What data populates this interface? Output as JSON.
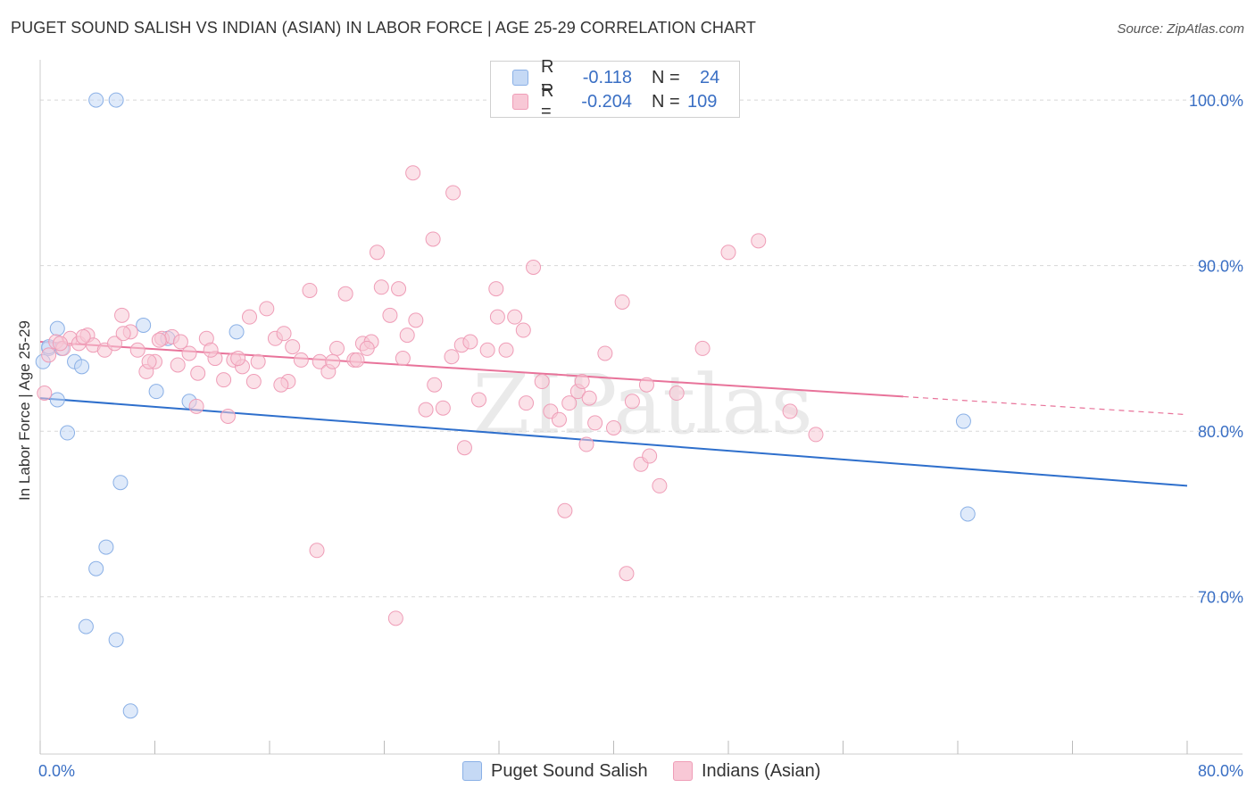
{
  "title": "PUGET SOUND SALISH VS INDIAN (ASIAN) IN LABOR FORCE | AGE 25-29 CORRELATION CHART",
  "source": "Source: ZipAtlas.com",
  "watermark": "ZIPatlas",
  "legend": {
    "series1": {
      "r_label": "R =",
      "r_value": "-0.118",
      "n_label": "N =",
      "n_value": "24"
    },
    "series2": {
      "r_label": "R =",
      "r_value": "-0.204",
      "n_label": "N =",
      "n_value": "109"
    }
  },
  "colors": {
    "blue_fill": "#c5d9f5",
    "blue_stroke": "#8ab0e6",
    "blue_line": "#2e6fcc",
    "pink_fill": "#f8c8d6",
    "pink_stroke": "#ef9db7",
    "pink_line": "#e8739a",
    "axis_text": "#3a6fc4",
    "grid": "#d8d8d8"
  },
  "chart_data": {
    "type": "scatter",
    "title": "PUGET SOUND SALISH VS INDIAN (ASIAN) IN LABOR FORCE | AGE 25-29 CORRELATION CHART",
    "xlabel": "",
    "ylabel": "In Labor Force | Age 25-29",
    "xlim": [
      0,
      80
    ],
    "ylim": [
      60.5,
      102
    ],
    "x_tick_labels": {
      "left": "0.0%",
      "right": "80.0%"
    },
    "y_ticks": [
      {
        "value": 100,
        "label": "100.0%"
      },
      {
        "value": 90,
        "label": "90.0%"
      },
      {
        "value": 80,
        "label": "80.0%"
      },
      {
        "value": 70,
        "label": "70.0%"
      }
    ],
    "series": [
      {
        "name": "Puget Sound Salish",
        "color": "blue",
        "r": -0.118,
        "n": 24,
        "trend": {
          "x0": 0,
          "y0": 82.0,
          "x1": 80,
          "y1": 76.7,
          "solid_until": 80
        },
        "points": [
          [
            3.9,
            100.0
          ],
          [
            5.3,
            100.0
          ],
          [
            0.2,
            84.2
          ],
          [
            0.6,
            85.0
          ],
          [
            1.2,
            86.2
          ],
          [
            1.5,
            85.0
          ],
          [
            2.4,
            84.2
          ],
          [
            2.9,
            83.9
          ],
          [
            1.2,
            81.9
          ],
          [
            1.9,
            79.9
          ],
          [
            7.2,
            86.4
          ],
          [
            8.9,
            85.6
          ],
          [
            13.7,
            86.0
          ],
          [
            8.1,
            82.4
          ],
          [
            10.4,
            81.8
          ],
          [
            5.6,
            76.9
          ],
          [
            4.6,
            73.0
          ],
          [
            3.9,
            71.7
          ],
          [
            3.2,
            68.2
          ],
          [
            5.3,
            67.4
          ],
          [
            6.3,
            63.1
          ],
          [
            64.7,
            75.0
          ],
          [
            64.4,
            80.6
          ],
          [
            0.6,
            85.1
          ]
        ]
      },
      {
        "name": "Indians (Asian)",
        "color": "pink",
        "r": -0.204,
        "n": 109,
        "trend": {
          "x0": 0,
          "y0": 85.4,
          "x1": 80,
          "y1": 81.0,
          "solid_until": 60.2
        },
        "points": [
          [
            0.3,
            82.3
          ],
          [
            0.6,
            84.6
          ],
          [
            1.1,
            85.4
          ],
          [
            1.6,
            85.0
          ],
          [
            2.1,
            85.6
          ],
          [
            2.7,
            85.3
          ],
          [
            3.3,
            85.8
          ],
          [
            3.7,
            85.2
          ],
          [
            4.5,
            84.9
          ],
          [
            5.2,
            85.3
          ],
          [
            5.7,
            87.0
          ],
          [
            6.3,
            86.0
          ],
          [
            6.8,
            84.9
          ],
          [
            7.4,
            83.6
          ],
          [
            8.0,
            84.2
          ],
          [
            8.5,
            85.6
          ],
          [
            9.2,
            85.7
          ],
          [
            9.8,
            85.4
          ],
          [
            10.4,
            84.7
          ],
          [
            11.0,
            83.5
          ],
          [
            11.6,
            85.6
          ],
          [
            12.2,
            84.4
          ],
          [
            12.8,
            83.1
          ],
          [
            13.5,
            84.3
          ],
          [
            14.1,
            83.9
          ],
          [
            14.6,
            86.9
          ],
          [
            15.2,
            84.2
          ],
          [
            15.8,
            87.4
          ],
          [
            16.4,
            85.6
          ],
          [
            17.0,
            85.9
          ],
          [
            17.6,
            85.1
          ],
          [
            18.2,
            84.3
          ],
          [
            18.8,
            88.5
          ],
          [
            19.5,
            84.2
          ],
          [
            20.1,
            83.6
          ],
          [
            20.7,
            85.0
          ],
          [
            21.3,
            88.3
          ],
          [
            21.9,
            84.3
          ],
          [
            22.5,
            85.3
          ],
          [
            23.1,
            85.4
          ],
          [
            23.8,
            88.7
          ],
          [
            24.4,
            87.0
          ],
          [
            25.0,
            88.6
          ],
          [
            25.6,
            85.8
          ],
          [
            26.2,
            86.7
          ],
          [
            26.9,
            81.3
          ],
          [
            27.5,
            82.8
          ],
          [
            28.1,
            81.4
          ],
          [
            28.7,
            84.5
          ],
          [
            29.4,
            85.2
          ],
          [
            30.0,
            85.4
          ],
          [
            30.6,
            81.9
          ],
          [
            31.2,
            84.9
          ],
          [
            31.8,
            88.6
          ],
          [
            32.5,
            84.9
          ],
          [
            33.1,
            86.9
          ],
          [
            33.7,
            86.1
          ],
          [
            34.4,
            89.9
          ],
          [
            35.0,
            83.0
          ],
          [
            35.6,
            81.2
          ],
          [
            36.2,
            80.7
          ],
          [
            36.9,
            81.7
          ],
          [
            37.5,
            82.4
          ],
          [
            38.1,
            79.2
          ],
          [
            38.7,
            80.5
          ],
          [
            39.4,
            84.7
          ],
          [
            40.0,
            80.2
          ],
          [
            40.6,
            87.8
          ],
          [
            41.3,
            81.8
          ],
          [
            41.9,
            78.0
          ],
          [
            42.5,
            78.5
          ],
          [
            43.2,
            76.7
          ],
          [
            44.4,
            82.3
          ],
          [
            46.2,
            85.0
          ],
          [
            48.0,
            90.8
          ],
          [
            50.1,
            91.5
          ],
          [
            52.3,
            81.2
          ],
          [
            54.1,
            79.8
          ],
          [
            5.8,
            85.9
          ],
          [
            8.3,
            85.5
          ],
          [
            10.9,
            81.5
          ],
          [
            13.1,
            80.9
          ],
          [
            14.9,
            83.0
          ],
          [
            17.3,
            83.0
          ],
          [
            19.3,
            72.8
          ],
          [
            22.1,
            84.3
          ],
          [
            24.8,
            68.7
          ],
          [
            26.0,
            95.6
          ],
          [
            28.8,
            94.4
          ],
          [
            27.4,
            91.6
          ],
          [
            23.5,
            90.8
          ],
          [
            31.9,
            86.9
          ],
          [
            36.6,
            75.2
          ],
          [
            38.3,
            82.0
          ],
          [
            40.9,
            71.4
          ],
          [
            13.8,
            84.4
          ],
          [
            7.6,
            84.2
          ],
          [
            9.6,
            84.0
          ],
          [
            11.9,
            84.9
          ],
          [
            16.8,
            82.8
          ],
          [
            20.4,
            84.2
          ],
          [
            22.8,
            85.0
          ],
          [
            25.3,
            84.4
          ],
          [
            29.6,
            79.0
          ],
          [
            33.9,
            81.7
          ],
          [
            37.8,
            83.0
          ],
          [
            42.3,
            82.8
          ],
          [
            3.0,
            85.7
          ],
          [
            1.4,
            85.3
          ]
        ]
      }
    ]
  }
}
